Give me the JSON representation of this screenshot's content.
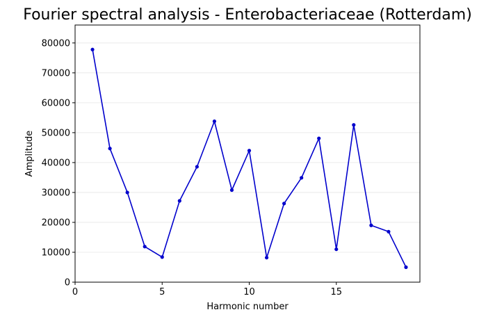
{
  "chart_data": {
    "type": "line",
    "title": "Fourier spectral analysis - Enterobacteriaceae (Rotterdam)",
    "xlabel": "Harmonic number",
    "ylabel": "Amplitude",
    "xlim": [
      0,
      19.8
    ],
    "ylim": [
      0,
      86000
    ],
    "xticks": [
      0,
      5,
      10,
      15
    ],
    "yticks": [
      0,
      10000,
      20000,
      30000,
      40000,
      50000,
      60000,
      70000,
      80000
    ],
    "grid": "horizontal",
    "series": [
      {
        "color": "#0000cc",
        "x": [
          1,
          2,
          3,
          4,
          5,
          6,
          7,
          8,
          9,
          10,
          11,
          12,
          13,
          14,
          15,
          16,
          17,
          18,
          19
        ],
        "y": [
          77800,
          44700,
          30000,
          11900,
          8400,
          27200,
          38600,
          53800,
          30800,
          44000,
          8200,
          26300,
          34900,
          48100,
          11000,
          52600,
          19000,
          16900,
          5000
        ]
      }
    ]
  }
}
